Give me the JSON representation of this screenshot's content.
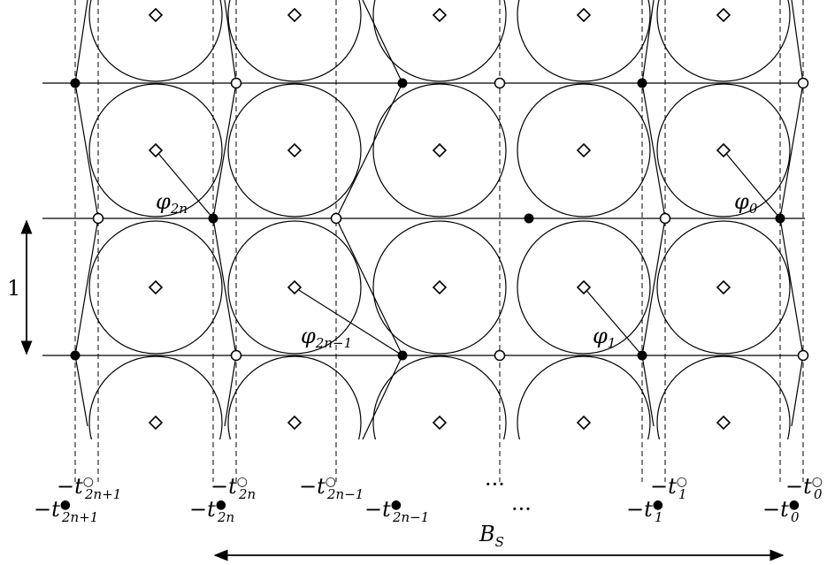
{
  "colors": {
    "ink": "#000000",
    "paper": "#ffffff"
  },
  "unit_label": "1",
  "width_label": {
    "main": "B",
    "sub": "S"
  },
  "ellipses": [
    "···",
    "···"
  ],
  "angles": [
    {
      "main": "φ",
      "sub": "2n"
    },
    {
      "main": "φ",
      "sub": "2n−1"
    },
    {
      "main": "φ",
      "sub": "1"
    },
    {
      "main": "φ",
      "sub": "0"
    }
  ],
  "bottom_labels": [
    {
      "prefix": "−t",
      "sup": "○",
      "sub": "2n+1"
    },
    {
      "prefix": "−t",
      "sup": "●",
      "sub": "2n+1"
    },
    {
      "prefix": "−t",
      "sup": "○",
      "sub": "2n"
    },
    {
      "prefix": "−t",
      "sup": "●",
      "sub": "2n"
    },
    {
      "prefix": "−t",
      "sup": "○",
      "sub": "2n−1"
    },
    {
      "prefix": "−t",
      "sup": "●",
      "sub": "2n−1"
    },
    {
      "prefix": "−t",
      "sup": "○",
      "sub": "1"
    },
    {
      "prefix": "−t",
      "sup": "●",
      "sub": "1"
    },
    {
      "prefix": "−t",
      "sup": "○",
      "sub": "0"
    },
    {
      "prefix": "−t",
      "sup": "●",
      "sub": "0"
    }
  ]
}
